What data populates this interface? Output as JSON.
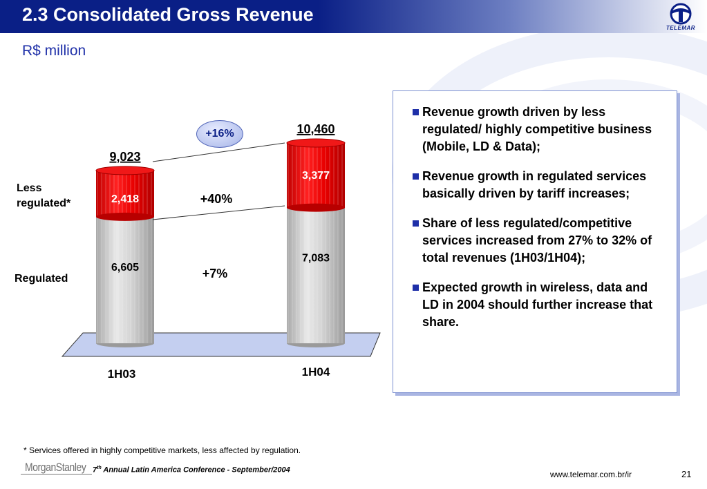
{
  "header": {
    "title": "2.3 Consolidated Gross Revenue",
    "subtitle": "R$ million",
    "logo_text": "TELEMAR",
    "brand_color": "#0a1f86"
  },
  "chart_data": {
    "type": "bar",
    "stacked": true,
    "categories": [
      "1H03",
      "1H04"
    ],
    "series": [
      {
        "name": "Regulated",
        "values": [
          6605,
          7083
        ],
        "labels": [
          "6,605",
          "7,083"
        ],
        "color": "#c8c8c8"
      },
      {
        "name": "Less regulated*",
        "values": [
          2418,
          3377
        ],
        "labels": [
          "2,418",
          "3,377"
        ],
        "color": "#e00000"
      }
    ],
    "totals": [
      9023,
      10460
    ],
    "total_labels": [
      "9,023",
      "10,460"
    ],
    "growth": {
      "total": "+16%",
      "less_regulated": "+40%",
      "regulated": "+7%"
    },
    "side_labels": {
      "less_regulated": [
        "Less",
        "regulated*"
      ],
      "regulated": "Regulated"
    },
    "ylim": [
      0,
      10460
    ],
    "grid": false,
    "legend": "none"
  },
  "bullets": [
    "Revenue growth driven by less regulated/ highly competitive business (Mobile, LD & Data);",
    "Revenue growth in regulated services basically driven by tariff increases;",
    "Share of less regulated/competitive services increased from 27% to 32% of total revenues (1H03/1H04);",
    "Expected growth in wireless, data and LD in 2004 should further increase that share."
  ],
  "footer": {
    "footnote": "* Services offered in highly competitive markets, less affected by regulation.",
    "sponsor": "MorganStanley",
    "conference_prefix": "7",
    "conference_sup": "th",
    "conference_rest": " Annual Latin America Conference -  September/2004",
    "url": "www.telemar.com.br/ir",
    "page": "21"
  }
}
